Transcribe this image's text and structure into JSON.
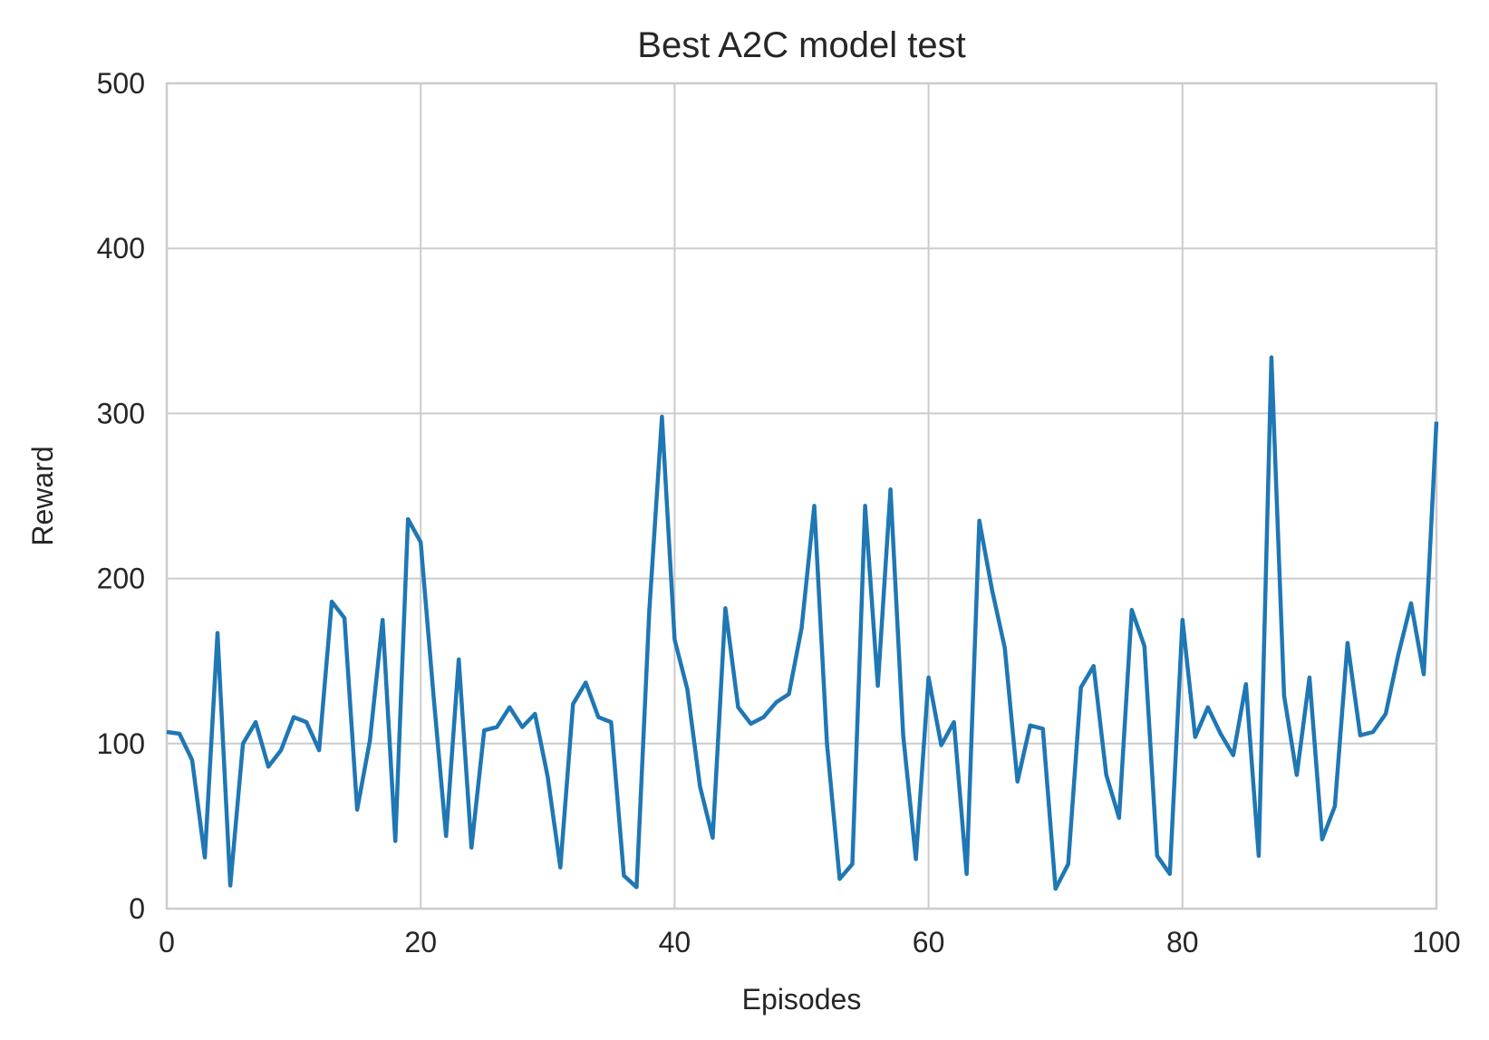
{
  "chart_data": {
    "type": "line",
    "title": "Best A2C model test",
    "xlabel": "Episodes",
    "ylabel": "Reward",
    "xlim": [
      0,
      100
    ],
    "ylim": [
      0,
      500
    ],
    "xticks": [
      0,
      20,
      40,
      60,
      80,
      100
    ],
    "yticks": [
      0,
      100,
      200,
      300,
      400,
      500
    ],
    "grid": true,
    "color": "#1f77b4",
    "series": [
      {
        "x": [
          0,
          1,
          2,
          3,
          4,
          5,
          6,
          7,
          8,
          9,
          10,
          11,
          12,
          13,
          14,
          15,
          16,
          17,
          18,
          19,
          20,
          21,
          22,
          23,
          24,
          25,
          26,
          27,
          28,
          29,
          30,
          31,
          32,
          33,
          34,
          35,
          36,
          37,
          38,
          39,
          40,
          41,
          42,
          43,
          44,
          45,
          46,
          47,
          48,
          49,
          50,
          51,
          52,
          53,
          54,
          55,
          56,
          57,
          58,
          59,
          60,
          61,
          62,
          63,
          64,
          65,
          66,
          67,
          68,
          69,
          70,
          71,
          72,
          73,
          74,
          75,
          76,
          77,
          78,
          79,
          80,
          81,
          82,
          83,
          84,
          85,
          86,
          87,
          88,
          89,
          90,
          91,
          92,
          93,
          94,
          95,
          96,
          97,
          98,
          99,
          100
        ],
        "y": [
          107,
          106,
          90,
          31,
          167,
          14,
          100,
          113,
          86,
          96,
          116,
          113,
          96,
          186,
          176,
          60,
          102,
          175,
          41,
          236,
          222,
          130,
          44,
          151,
          37,
          108,
          110,
          122,
          110,
          118,
          80,
          25,
          124,
          137,
          116,
          113,
          20,
          13,
          180,
          298,
          163,
          133,
          74,
          43,
          182,
          122,
          112,
          116,
          125,
          130,
          170,
          244,
          100,
          18,
          27,
          244,
          135,
          254,
          105,
          30,
          140,
          99,
          113,
          21,
          235,
          193,
          158,
          77,
          111,
          109,
          12,
          27,
          134,
          147,
          81,
          55,
          181,
          159,
          32,
          21,
          175,
          104,
          122,
          106,
          93,
          136,
          32,
          334,
          129,
          81,
          140,
          42,
          62,
          161,
          105,
          107,
          118,
          154,
          185,
          142,
          295
        ]
      }
    ]
  }
}
